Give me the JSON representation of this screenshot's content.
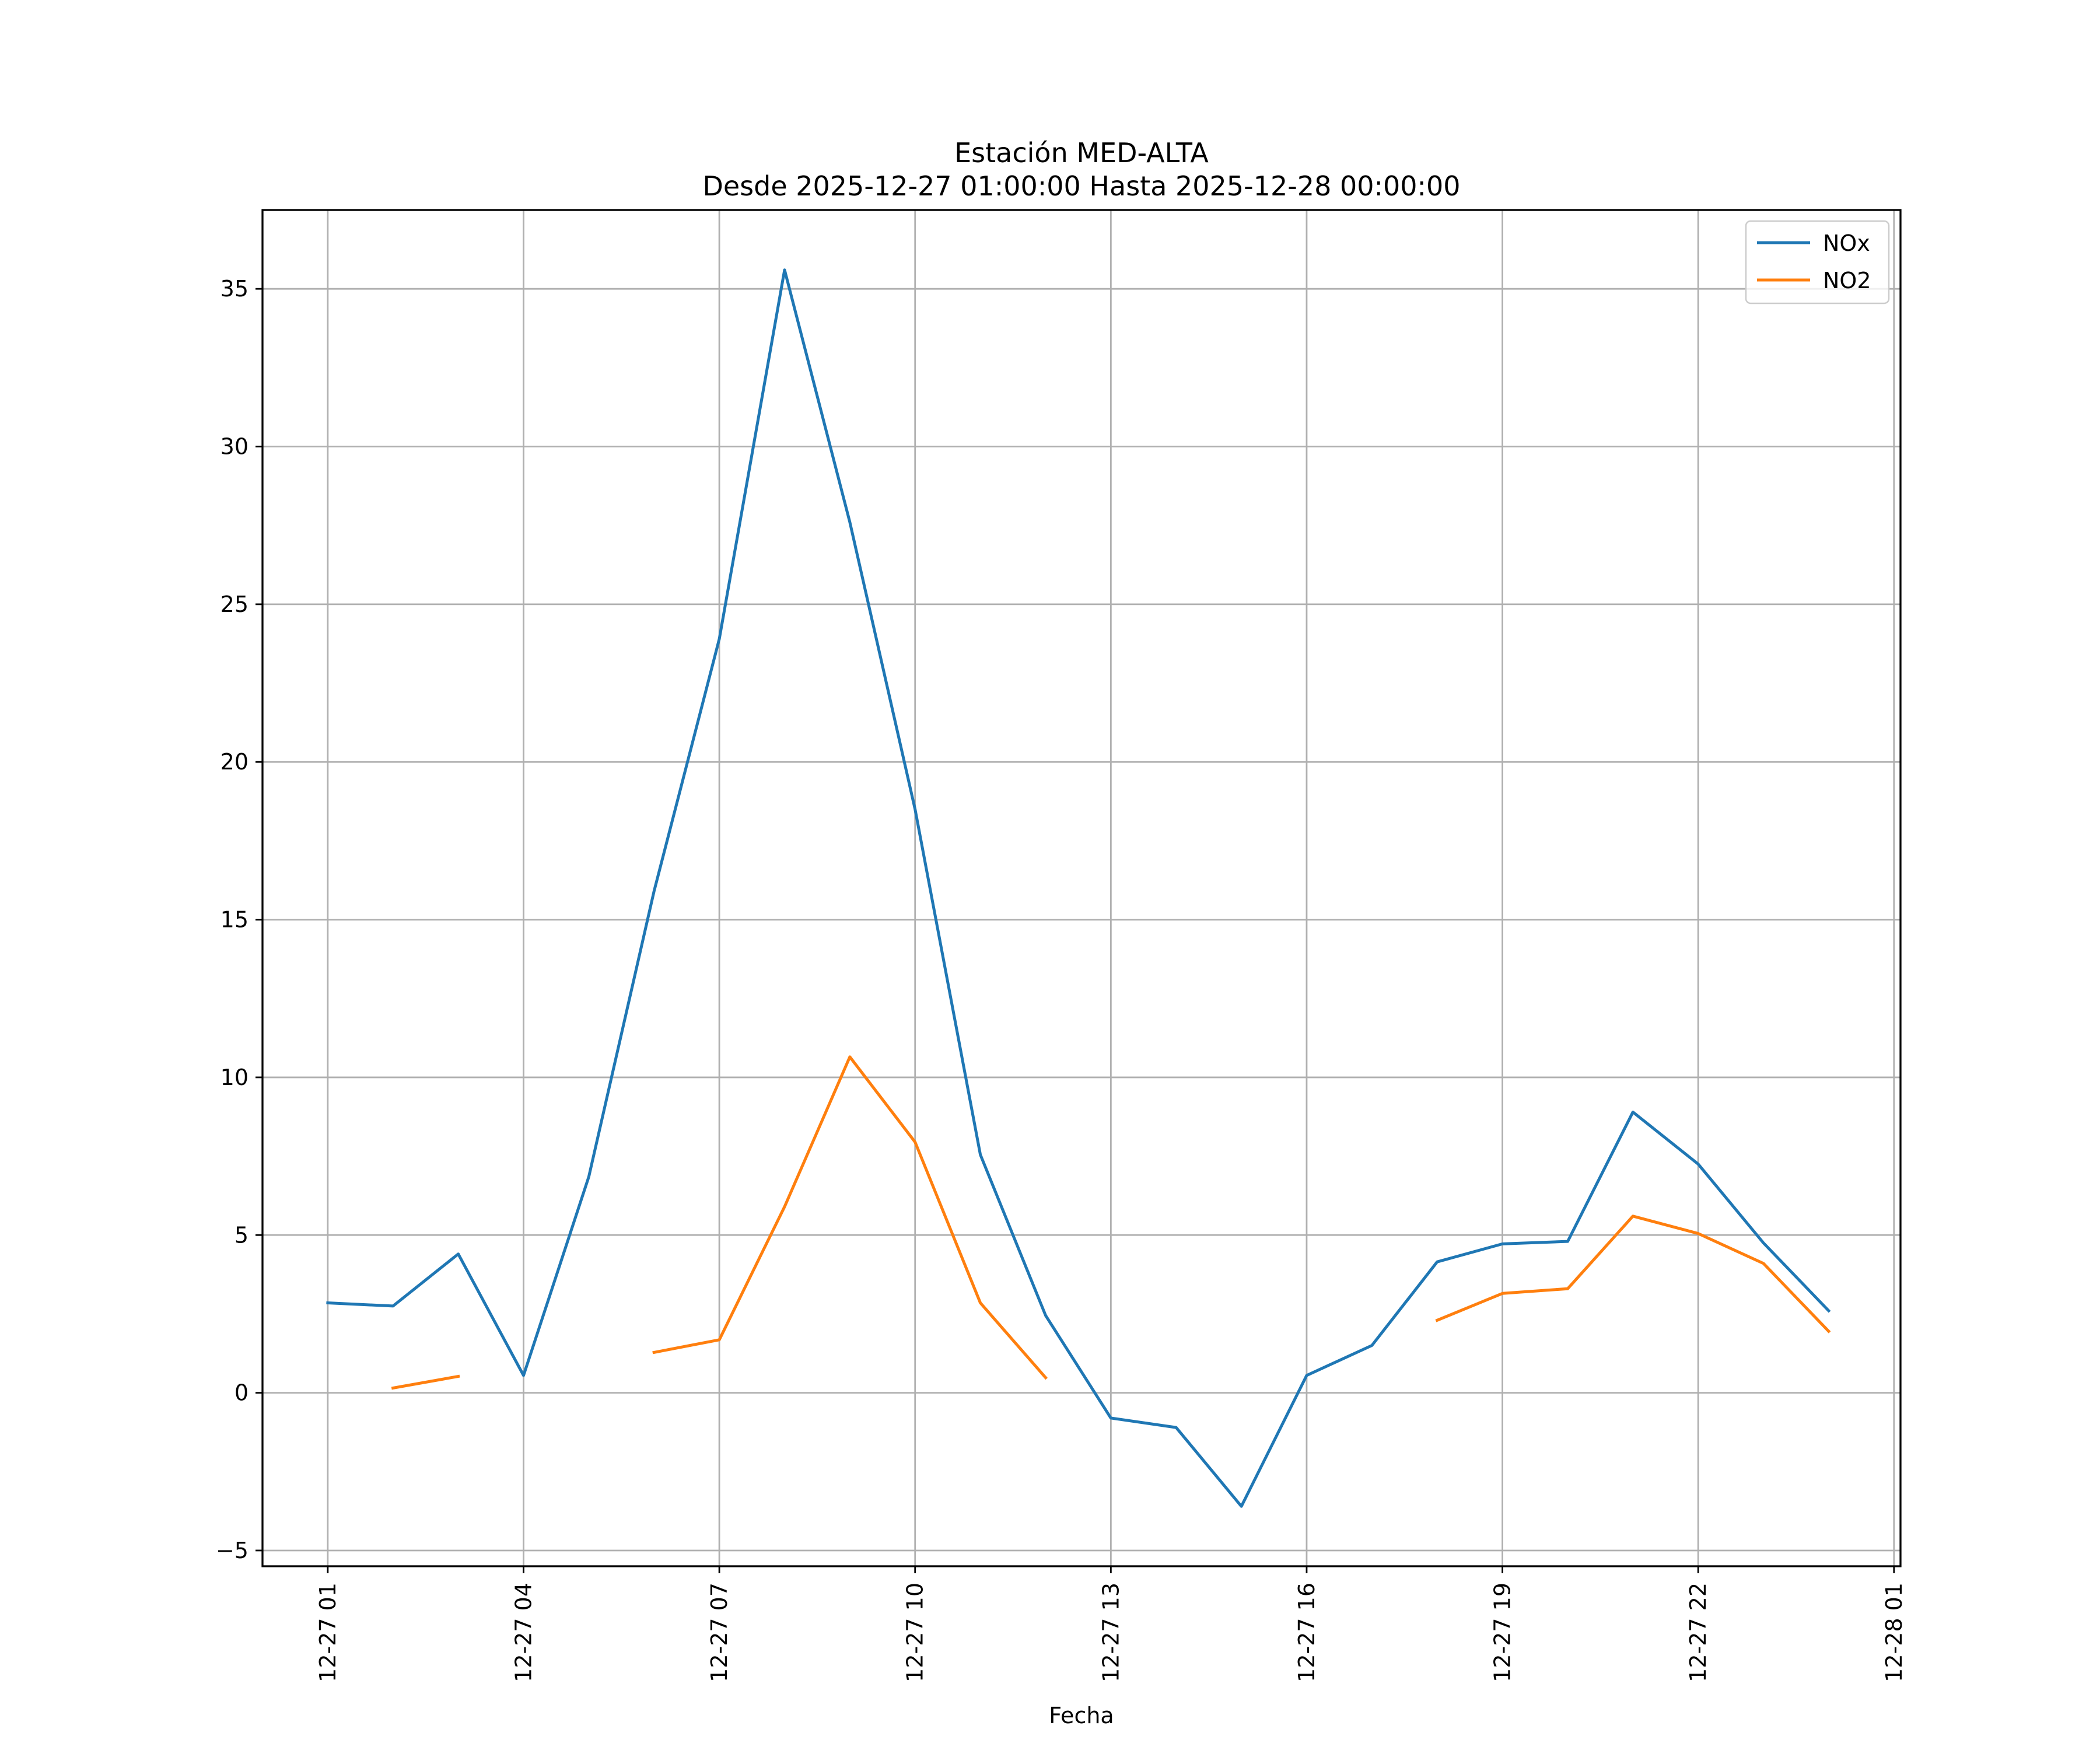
{
  "chart_data": {
    "type": "line",
    "title": "Estación MED-ALTA",
    "subtitle": "Desde 2025-12-27 01:00:00 Hasta 2025-12-28 00:00:00",
    "xlabel": "Fecha",
    "ylabel": "",
    "x": [
      "12-27 01",
      "12-27 02",
      "12-27 03",
      "12-27 04",
      "12-27 05",
      "12-27 06",
      "12-27 07",
      "12-27 08",
      "12-27 09",
      "12-27 10",
      "12-27 11",
      "12-27 12",
      "12-27 13",
      "12-27 14",
      "12-27 15",
      "12-27 16",
      "12-27 17",
      "12-27 18",
      "12-27 19",
      "12-27 20",
      "12-27 21",
      "12-27 22",
      "12-27 23",
      "12-28 00"
    ],
    "x_ticks": [
      "12-27 01",
      "12-27 04",
      "12-27 07",
      "12-27 10",
      "12-27 13",
      "12-27 16",
      "12-27 19",
      "12-27 22",
      "12-28 01"
    ],
    "xlim": [
      "12-27 00:00",
      "12-28 01:06"
    ],
    "ylim": [
      -5.5,
      37.5
    ],
    "y_ticks": [
      -5,
      0,
      5,
      10,
      15,
      20,
      25,
      30,
      35
    ],
    "y_tick_labels": [
      "−5",
      "0",
      "5",
      "10",
      "15",
      "20",
      "25",
      "30",
      "35"
    ],
    "grid": true,
    "legend_position": "top-right",
    "series": [
      {
        "name": "NOx",
        "color": "#1f77b4",
        "values": [
          2.85,
          2.75,
          4.4,
          0.55,
          6.85,
          15.9,
          23.9,
          35.6,
          27.6,
          18.5,
          7.55,
          2.45,
          -0.8,
          -1.1,
          -3.6,
          0.55,
          1.5,
          4.15,
          4.72,
          4.8,
          8.9,
          7.25,
          4.75,
          2.6
        ]
      },
      {
        "name": "NO2",
        "color": "#ff7f0e",
        "values": [
          null,
          0.15,
          0.52,
          null,
          null,
          1.28,
          1.68,
          5.9,
          10.65,
          7.95,
          2.85,
          0.48,
          null,
          null,
          null,
          null,
          null,
          2.3,
          3.15,
          3.3,
          5.6,
          5.05,
          4.1,
          1.95
        ]
      }
    ]
  }
}
